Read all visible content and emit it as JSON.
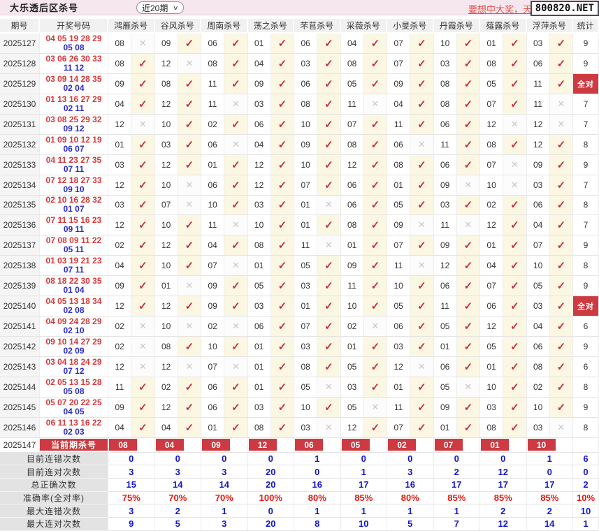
{
  "icons": {
    "check": "✓",
    "cross": "✕",
    "chevron_down": "∨"
  },
  "topbar": {
    "title": "大乐透后区杀号",
    "range_select": "近20期",
    "promo_link": "要想中大奖，天",
    "site_box": "800820.NET"
  },
  "table": {
    "headers": [
      "期号",
      "开奖号码",
      "鸿雁杀号",
      "谷风杀号",
      "周南杀号",
      "荡之杀号",
      "芣苢杀号",
      "采薇杀号",
      "小旻杀号",
      "丹霞杀号",
      "薤露杀号",
      "浮萍杀号",
      "统计"
    ],
    "all_correct_label": "全对",
    "rows": [
      {
        "period": "2025127",
        "front": "04 05 19 28 29",
        "back": "05 08",
        "kills": [
          {
            "n": "08",
            "hit": false
          },
          {
            "n": "09",
            "hit": true
          },
          {
            "n": "06",
            "hit": true
          },
          {
            "n": "01",
            "hit": true
          },
          {
            "n": "06",
            "hit": true
          },
          {
            "n": "04",
            "hit": true
          },
          {
            "n": "07",
            "hit": true
          },
          {
            "n": "10",
            "hit": true
          },
          {
            "n": "01",
            "hit": true
          },
          {
            "n": "03",
            "hit": true
          }
        ],
        "stat": "9"
      },
      {
        "period": "2025128",
        "front": "03 06 26 30 33",
        "back": "11 12",
        "kills": [
          {
            "n": "08",
            "hit": true
          },
          {
            "n": "12",
            "hit": false
          },
          {
            "n": "08",
            "hit": true
          },
          {
            "n": "04",
            "hit": true
          },
          {
            "n": "03",
            "hit": true
          },
          {
            "n": "08",
            "hit": true
          },
          {
            "n": "07",
            "hit": true
          },
          {
            "n": "03",
            "hit": true
          },
          {
            "n": "08",
            "hit": true
          },
          {
            "n": "06",
            "hit": true
          }
        ],
        "stat": "9"
      },
      {
        "period": "2025129",
        "front": "03 09 14 28 35",
        "back": "02 04",
        "kills": [
          {
            "n": "09",
            "hit": true
          },
          {
            "n": "08",
            "hit": true
          },
          {
            "n": "11",
            "hit": true
          },
          {
            "n": "09",
            "hit": true
          },
          {
            "n": "06",
            "hit": true
          },
          {
            "n": "05",
            "hit": true
          },
          {
            "n": "09",
            "hit": true
          },
          {
            "n": "08",
            "hit": true
          },
          {
            "n": "05",
            "hit": true
          },
          {
            "n": "11",
            "hit": true
          }
        ],
        "stat": "全对"
      },
      {
        "period": "2025130",
        "front": "01 13 16 27 29",
        "back": "02 11",
        "kills": [
          {
            "n": "04",
            "hit": true
          },
          {
            "n": "12",
            "hit": true
          },
          {
            "n": "11",
            "hit": false
          },
          {
            "n": "03",
            "hit": true
          },
          {
            "n": "08",
            "hit": true
          },
          {
            "n": "11",
            "hit": false
          },
          {
            "n": "04",
            "hit": true
          },
          {
            "n": "08",
            "hit": true
          },
          {
            "n": "07",
            "hit": true
          },
          {
            "n": "11",
            "hit": false
          }
        ],
        "stat": "7"
      },
      {
        "period": "2025131",
        "front": "03 08 25 29 32",
        "back": "09 12",
        "kills": [
          {
            "n": "12",
            "hit": false
          },
          {
            "n": "10",
            "hit": true
          },
          {
            "n": "02",
            "hit": true
          },
          {
            "n": "06",
            "hit": true
          },
          {
            "n": "10",
            "hit": true
          },
          {
            "n": "07",
            "hit": true
          },
          {
            "n": "11",
            "hit": true
          },
          {
            "n": "06",
            "hit": true
          },
          {
            "n": "12",
            "hit": false
          },
          {
            "n": "12",
            "hit": false
          }
        ],
        "stat": "7"
      },
      {
        "period": "2025132",
        "front": "01 09 10 12 19",
        "back": "06 07",
        "kills": [
          {
            "n": "01",
            "hit": true
          },
          {
            "n": "03",
            "hit": true
          },
          {
            "n": "06",
            "hit": false
          },
          {
            "n": "04",
            "hit": true
          },
          {
            "n": "09",
            "hit": true
          },
          {
            "n": "08",
            "hit": true
          },
          {
            "n": "06",
            "hit": false
          },
          {
            "n": "11",
            "hit": true
          },
          {
            "n": "08",
            "hit": true
          },
          {
            "n": "12",
            "hit": true
          }
        ],
        "stat": "8"
      },
      {
        "period": "2025133",
        "front": "04 11 23 27 35",
        "back": "07 11",
        "kills": [
          {
            "n": "03",
            "hit": true
          },
          {
            "n": "12",
            "hit": true
          },
          {
            "n": "01",
            "hit": true
          },
          {
            "n": "12",
            "hit": true
          },
          {
            "n": "10",
            "hit": true
          },
          {
            "n": "12",
            "hit": true
          },
          {
            "n": "08",
            "hit": true
          },
          {
            "n": "06",
            "hit": true
          },
          {
            "n": "07",
            "hit": false
          },
          {
            "n": "09",
            "hit": true
          }
        ],
        "stat": "9"
      },
      {
        "period": "2025134",
        "front": "07 12 18 27 33",
        "back": "09 10",
        "kills": [
          {
            "n": "12",
            "hit": true
          },
          {
            "n": "10",
            "hit": false
          },
          {
            "n": "06",
            "hit": true
          },
          {
            "n": "12",
            "hit": true
          },
          {
            "n": "07",
            "hit": true
          },
          {
            "n": "06",
            "hit": true
          },
          {
            "n": "01",
            "hit": true
          },
          {
            "n": "09",
            "hit": false
          },
          {
            "n": "10",
            "hit": false
          },
          {
            "n": "03",
            "hit": true
          }
        ],
        "stat": "7"
      },
      {
        "period": "2025135",
        "front": "02 10 16 28 32",
        "back": "01 07",
        "kills": [
          {
            "n": "03",
            "hit": true
          },
          {
            "n": "07",
            "hit": false
          },
          {
            "n": "10",
            "hit": true
          },
          {
            "n": "03",
            "hit": true
          },
          {
            "n": "01",
            "hit": false
          },
          {
            "n": "06",
            "hit": true
          },
          {
            "n": "05",
            "hit": true
          },
          {
            "n": "03",
            "hit": true
          },
          {
            "n": "02",
            "hit": true
          },
          {
            "n": "06",
            "hit": true
          }
        ],
        "stat": "8"
      },
      {
        "period": "2025136",
        "front": "07 11 15 16 23",
        "back": "09 11",
        "kills": [
          {
            "n": "12",
            "hit": true
          },
          {
            "n": "10",
            "hit": true
          },
          {
            "n": "11",
            "hit": false
          },
          {
            "n": "10",
            "hit": true
          },
          {
            "n": "01",
            "hit": true
          },
          {
            "n": "08",
            "hit": true
          },
          {
            "n": "09",
            "hit": false
          },
          {
            "n": "11",
            "hit": false
          },
          {
            "n": "12",
            "hit": true
          },
          {
            "n": "04",
            "hit": true
          }
        ],
        "stat": "7"
      },
      {
        "period": "2025137",
        "front": "07 08 09 11 22",
        "back": "05 11",
        "kills": [
          {
            "n": "02",
            "hit": true
          },
          {
            "n": "12",
            "hit": true
          },
          {
            "n": "04",
            "hit": true
          },
          {
            "n": "08",
            "hit": true
          },
          {
            "n": "11",
            "hit": false
          },
          {
            "n": "01",
            "hit": true
          },
          {
            "n": "07",
            "hit": true
          },
          {
            "n": "09",
            "hit": true
          },
          {
            "n": "01",
            "hit": true
          },
          {
            "n": "07",
            "hit": true
          }
        ],
        "stat": "9"
      },
      {
        "period": "2025138",
        "front": "01 03 19 21 23",
        "back": "07 11",
        "kills": [
          {
            "n": "04",
            "hit": true
          },
          {
            "n": "10",
            "hit": true
          },
          {
            "n": "07",
            "hit": false
          },
          {
            "n": "01",
            "hit": true
          },
          {
            "n": "05",
            "hit": true
          },
          {
            "n": "09",
            "hit": true
          },
          {
            "n": "11",
            "hit": false
          },
          {
            "n": "12",
            "hit": true
          },
          {
            "n": "04",
            "hit": true
          },
          {
            "n": "10",
            "hit": true
          }
        ],
        "stat": "8"
      },
      {
        "period": "2025139",
        "front": "08 18 22 30 35",
        "back": "01 04",
        "kills": [
          {
            "n": "09",
            "hit": true
          },
          {
            "n": "01",
            "hit": false
          },
          {
            "n": "09",
            "hit": true
          },
          {
            "n": "05",
            "hit": true
          },
          {
            "n": "03",
            "hit": true
          },
          {
            "n": "11",
            "hit": true
          },
          {
            "n": "10",
            "hit": true
          },
          {
            "n": "06",
            "hit": true
          },
          {
            "n": "07",
            "hit": true
          },
          {
            "n": "05",
            "hit": true
          }
        ],
        "stat": "9"
      },
      {
        "period": "2025140",
        "front": "04 05 13 18 34",
        "back": "02 08",
        "kills": [
          {
            "n": "12",
            "hit": true
          },
          {
            "n": "12",
            "hit": true
          },
          {
            "n": "09",
            "hit": true
          },
          {
            "n": "03",
            "hit": true
          },
          {
            "n": "01",
            "hit": true
          },
          {
            "n": "10",
            "hit": true
          },
          {
            "n": "05",
            "hit": true
          },
          {
            "n": "11",
            "hit": true
          },
          {
            "n": "06",
            "hit": true
          },
          {
            "n": "03",
            "hit": true
          }
        ],
        "stat": "全对"
      },
      {
        "period": "2025141",
        "front": "04 09 24 28 29",
        "back": "02 10",
        "kills": [
          {
            "n": "02",
            "hit": false
          },
          {
            "n": "10",
            "hit": false
          },
          {
            "n": "02",
            "hit": false
          },
          {
            "n": "06",
            "hit": true
          },
          {
            "n": "07",
            "hit": true
          },
          {
            "n": "02",
            "hit": false
          },
          {
            "n": "06",
            "hit": true
          },
          {
            "n": "05",
            "hit": true
          },
          {
            "n": "12",
            "hit": true
          },
          {
            "n": "04",
            "hit": true
          }
        ],
        "stat": "6"
      },
      {
        "period": "2025142",
        "front": "09 10 14 27 29",
        "back": "02 09",
        "kills": [
          {
            "n": "02",
            "hit": false
          },
          {
            "n": "08",
            "hit": true
          },
          {
            "n": "10",
            "hit": true
          },
          {
            "n": "01",
            "hit": true
          },
          {
            "n": "03",
            "hit": true
          },
          {
            "n": "01",
            "hit": true
          },
          {
            "n": "03",
            "hit": true
          },
          {
            "n": "01",
            "hit": true
          },
          {
            "n": "05",
            "hit": true
          },
          {
            "n": "06",
            "hit": true
          }
        ],
        "stat": "9"
      },
      {
        "period": "2025143",
        "front": "03 04 18 24 29",
        "back": "07 12",
        "kills": [
          {
            "n": "12",
            "hit": false
          },
          {
            "n": "12",
            "hit": false
          },
          {
            "n": "07",
            "hit": false
          },
          {
            "n": "01",
            "hit": true
          },
          {
            "n": "08",
            "hit": true
          },
          {
            "n": "05",
            "hit": true
          },
          {
            "n": "12",
            "hit": false
          },
          {
            "n": "06",
            "hit": true
          },
          {
            "n": "01",
            "hit": true
          },
          {
            "n": "08",
            "hit": true
          }
        ],
        "stat": "6"
      },
      {
        "period": "2025144",
        "front": "02 05 13 15 28",
        "back": "05 08",
        "kills": [
          {
            "n": "11",
            "hit": true
          },
          {
            "n": "02",
            "hit": true
          },
          {
            "n": "06",
            "hit": true
          },
          {
            "n": "01",
            "hit": true
          },
          {
            "n": "05",
            "hit": false
          },
          {
            "n": "03",
            "hit": true
          },
          {
            "n": "01",
            "hit": true
          },
          {
            "n": "05",
            "hit": false
          },
          {
            "n": "10",
            "hit": true
          },
          {
            "n": "02",
            "hit": true
          }
        ],
        "stat": "8"
      },
      {
        "period": "2025145",
        "front": "05 07 20 22 25",
        "back": "04 05",
        "kills": [
          {
            "n": "09",
            "hit": true
          },
          {
            "n": "12",
            "hit": true
          },
          {
            "n": "06",
            "hit": true
          },
          {
            "n": "03",
            "hit": true
          },
          {
            "n": "10",
            "hit": true
          },
          {
            "n": "05",
            "hit": false
          },
          {
            "n": "11",
            "hit": true
          },
          {
            "n": "09",
            "hit": true
          },
          {
            "n": "03",
            "hit": true
          },
          {
            "n": "10",
            "hit": true
          }
        ],
        "stat": "9"
      },
      {
        "period": "2025146",
        "front": "06 11 13 16 22",
        "back": "02 03",
        "kills": [
          {
            "n": "04",
            "hit": true
          },
          {
            "n": "04",
            "hit": true
          },
          {
            "n": "01",
            "hit": true
          },
          {
            "n": "08",
            "hit": true
          },
          {
            "n": "03",
            "hit": false
          },
          {
            "n": "12",
            "hit": true
          },
          {
            "n": "07",
            "hit": true
          },
          {
            "n": "01",
            "hit": true
          },
          {
            "n": "08",
            "hit": true
          },
          {
            "n": "03",
            "hit": false
          }
        ],
        "stat": "8"
      }
    ],
    "current": {
      "period": "2025147",
      "label": "当前期杀号",
      "kills": [
        "08",
        "04",
        "09",
        "12",
        "06",
        "05",
        "02",
        "07",
        "01",
        "10"
      ]
    },
    "summary": [
      {
        "label": "目前连错次数",
        "type": "blue",
        "values": [
          "0",
          "0",
          "0",
          "0",
          "1",
          "0",
          "0",
          "0",
          "0",
          "1"
        ],
        "stat": "6"
      },
      {
        "label": "目前连对次数",
        "type": "blue",
        "values": [
          "3",
          "3",
          "3",
          "20",
          "0",
          "1",
          "3",
          "2",
          "12",
          "0"
        ],
        "stat": "0"
      },
      {
        "label": "总正确次数",
        "type": "blue",
        "values": [
          "15",
          "14",
          "14",
          "20",
          "16",
          "17",
          "16",
          "17",
          "17",
          "17"
        ],
        "stat": "2"
      },
      {
        "label": "准确率(全对率)",
        "type": "red",
        "values": [
          "75%",
          "70%",
          "70%",
          "100%",
          "80%",
          "85%",
          "80%",
          "85%",
          "85%",
          "85%"
        ],
        "stat": "10%"
      },
      {
        "label": "最大连错次数",
        "type": "blue",
        "values": [
          "3",
          "2",
          "1",
          "0",
          "1",
          "1",
          "1",
          "1",
          "2",
          "2"
        ],
        "stat": "10"
      },
      {
        "label": "最大连对次数",
        "type": "blue",
        "values": [
          "9",
          "5",
          "3",
          "20",
          "8",
          "10",
          "5",
          "7",
          "12",
          "14"
        ],
        "stat": "1"
      }
    ]
  }
}
